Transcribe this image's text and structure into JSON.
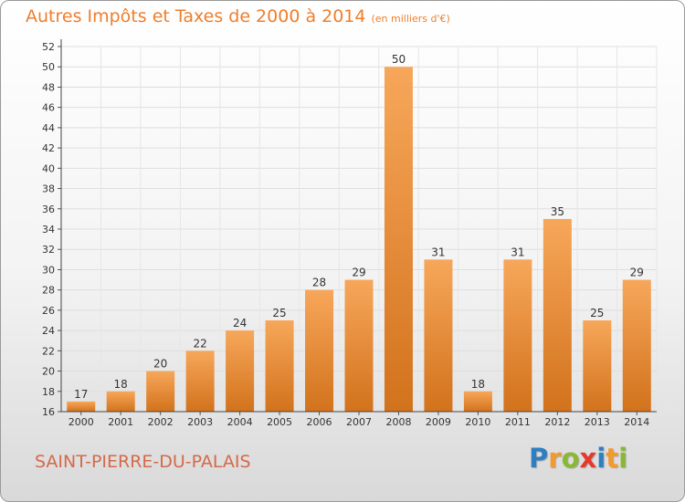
{
  "header": {
    "title": "Autres Impôts et Taxes de 2000 à 2014",
    "unit": "(en milliers d'€)"
  },
  "footer": {
    "commune": "SAINT-PIERRE-DU-PALAIS",
    "logo_letters": [
      {
        "char": "P",
        "color": "#2e7fc1"
      },
      {
        "char": "r",
        "color": "#f29a2e"
      },
      {
        "char": "o",
        "color": "#8ab833"
      },
      {
        "char": "x",
        "color": "#e6392d"
      },
      {
        "char": "i",
        "color": "#2e7fc1"
      },
      {
        "char": "t",
        "color": "#f29a2e"
      },
      {
        "char": "i",
        "color": "#8ab833"
      }
    ]
  },
  "colors": {
    "bar_light": "#f7a75a",
    "bar_dark": "#d2721c",
    "title": "#ef7e2b"
  },
  "chart_data": {
    "type": "bar",
    "title": "Autres Impôts et Taxes de 2000 à 2014",
    "ylabel": "",
    "xlabel": "",
    "categories": [
      "2000",
      "2001",
      "2002",
      "2003",
      "2004",
      "2005",
      "2006",
      "2007",
      "2008",
      "2009",
      "2010",
      "2011",
      "2012",
      "2013",
      "2014"
    ],
    "values": [
      17,
      18,
      20,
      22,
      24,
      25,
      28,
      29,
      50,
      31,
      18,
      31,
      35,
      25,
      29
    ],
    "ylim": [
      16,
      52
    ],
    "yticks": [
      16,
      18,
      20,
      22,
      24,
      26,
      28,
      30,
      32,
      34,
      36,
      38,
      40,
      42,
      44,
      46,
      48,
      50,
      52
    ],
    "grid": true
  }
}
